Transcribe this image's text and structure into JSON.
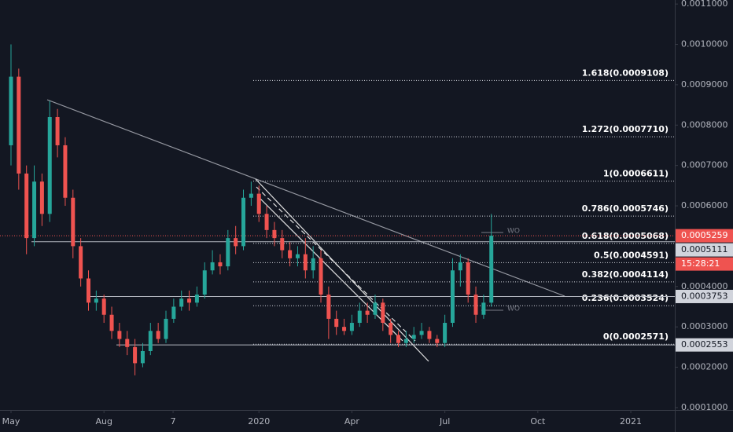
{
  "chart_data": {
    "type": "candlestick",
    "x": [
      0,
      0.25,
      0.5,
      0.75,
      1,
      1.25,
      1.5,
      1.75,
      2,
      2.25,
      2.5,
      2.75,
      3,
      3.25,
      3.5,
      3.75,
      4,
      4.25,
      4.5,
      4.75,
      5,
      5.25,
      5.5,
      5.75,
      6,
      6.25,
      6.5,
      6.75,
      7,
      7.25,
      7.5,
      7.75,
      8,
      8.25,
      8.5,
      8.75,
      9,
      9.25,
      9.5,
      9.75,
      10,
      10.25,
      10.5,
      10.75,
      11,
      11.25,
      11.5,
      11.75,
      12,
      12.25,
      12.5,
      12.75,
      13,
      13.25,
      13.5,
      13.75,
      14,
      14.25,
      14.5,
      14.75,
      15,
      15.25,
      15.5
    ],
    "open": [
      0.00075,
      0.00092,
      0.00068,
      0.00052,
      0.00066,
      0.00058,
      0.00082,
      0.00075,
      0.00062,
      0.0005,
      0.00042,
      0.00036,
      0.00037,
      0.00033,
      0.00029,
      0.00027,
      0.00025,
      0.00021,
      0.00024,
      0.00029,
      0.00027,
      0.00032,
      0.00035,
      0.00037,
      0.00036,
      0.00038,
      0.00044,
      0.00046,
      0.00045,
      0.00052,
      0.0005,
      0.00062,
      0.00063,
      0.00058,
      0.00054,
      0.00052,
      0.00049,
      0.00047,
      0.00048,
      0.00044,
      0.00047,
      0.00038,
      0.00032,
      0.0003,
      0.00029,
      0.00031,
      0.00034,
      0.00033,
      0.00036,
      0.00031,
      0.00028,
      0.00026,
      0.00027,
      0.00028,
      0.00029,
      0.00027,
      0.00026,
      0.00031,
      0.00044,
      0.00046,
      0.00038,
      0.00033,
      0.00036
    ],
    "high": [
      0.001,
      0.00094,
      0.0007,
      0.0007,
      0.00068,
      0.00086,
      0.00084,
      0.00077,
      0.00064,
      0.00052,
      0.00044,
      0.00039,
      0.00038,
      0.00035,
      0.00031,
      0.00029,
      0.00027,
      0.00026,
      0.00031,
      0.00031,
      0.00034,
      0.00037,
      0.00039,
      0.00039,
      0.0004,
      0.00046,
      0.00049,
      0.00048,
      0.00054,
      0.00055,
      0.00064,
      0.00066,
      0.00065,
      0.0006,
      0.00056,
      0.00054,
      0.00051,
      0.0005,
      0.00052,
      0.0005,
      0.00049,
      0.0004,
      0.00034,
      0.00032,
      0.00033,
      0.00036,
      0.00036,
      0.00038,
      0.00037,
      0.00032,
      0.00029,
      0.00029,
      0.0003,
      0.00031,
      0.0003,
      0.00028,
      0.00033,
      0.00047,
      0.00048,
      0.00047,
      0.0004,
      0.00038,
      0.00058
    ],
    "low": [
      0.0007,
      0.00064,
      0.00048,
      0.0005,
      0.00055,
      0.00056,
      0.00072,
      0.0006,
      0.00047,
      0.0004,
      0.00034,
      0.00034,
      0.00031,
      0.00027,
      0.00025,
      0.00023,
      0.00018,
      0.0002,
      0.00023,
      0.00026,
      0.00026,
      0.00031,
      0.00034,
      0.00034,
      0.00035,
      0.00037,
      0.00043,
      0.00043,
      0.00044,
      0.00048,
      0.00049,
      0.0006,
      0.00056,
      0.00052,
      0.0005,
      0.00047,
      0.00045,
      0.00045,
      0.00042,
      0.00042,
      0.00036,
      0.00027,
      0.00028,
      0.00028,
      0.00028,
      0.0003,
      0.00031,
      0.00032,
      0.00029,
      0.00026,
      0.00025,
      0.00025,
      0.00026,
      0.00027,
      0.00026,
      0.00025,
      0.00025,
      0.0003,
      0.0004,
      0.00036,
      0.00031,
      0.00032,
      0.00035
    ],
    "close": [
      0.00092,
      0.00068,
      0.00052,
      0.00066,
      0.00058,
      0.00082,
      0.00075,
      0.00062,
      0.0005,
      0.00042,
      0.00036,
      0.00037,
      0.00033,
      0.00029,
      0.00027,
      0.00025,
      0.00021,
      0.00024,
      0.00029,
      0.00027,
      0.00032,
      0.00035,
      0.00037,
      0.00036,
      0.00038,
      0.00044,
      0.00046,
      0.00045,
      0.00052,
      0.0005,
      0.00062,
      0.00063,
      0.00058,
      0.00054,
      0.00052,
      0.00049,
      0.00047,
      0.00048,
      0.00044,
      0.00047,
      0.00038,
      0.00032,
      0.0003,
      0.00029,
      0.00031,
      0.00034,
      0.00033,
      0.00036,
      0.00031,
      0.00028,
      0.00026,
      0.00027,
      0.00028,
      0.00029,
      0.00027,
      0.00026,
      0.00031,
      0.00044,
      0.00046,
      0.00038,
      0.00033,
      0.00036,
      0.0005259
    ],
    "up_color": "#26a69a",
    "down_color": "#ef5350",
    "xlim": [
      -0.355,
      21.42
    ],
    "xticks": [
      {
        "value": 0,
        "label": "May"
      },
      {
        "value": 3,
        "label": "Aug"
      },
      {
        "value": 5.23,
        "label": "7"
      },
      {
        "value": 8,
        "label": "2020"
      },
      {
        "value": 11,
        "label": "Apr"
      },
      {
        "value": 14,
        "label": "Jul"
      },
      {
        "value": 17,
        "label": "Oct"
      },
      {
        "value": 20,
        "label": "2021"
      }
    ],
    "ylim": [
      9.4e-05,
      0.00111
    ],
    "yticks": [
      {
        "value": 0.0011,
        "label": "0.0011000"
      },
      {
        "value": 0.001,
        "label": "0.0010000"
      },
      {
        "value": 0.0009,
        "label": "0.0009000"
      },
      {
        "value": 0.0008,
        "label": "0.0008000"
      },
      {
        "value": 0.0007,
        "label": "0.0007000"
      },
      {
        "value": 0.0006,
        "label": "0.0006000"
      },
      {
        "value": 0.0004,
        "label": "0.0004000"
      },
      {
        "value": 0.0003,
        "label": "0.0003000"
      },
      {
        "value": 0.0002,
        "label": "0.0002000"
      },
      {
        "value": 0.0001,
        "label": "0.0001000"
      }
    ],
    "fib_levels": [
      {
        "value": 0.0009108,
        "label": "1.618(0.0009108)"
      },
      {
        "value": 0.000771,
        "label": "1.272(0.0007710)"
      },
      {
        "value": 0.0006611,
        "label": "1(0.0006611)"
      },
      {
        "value": 0.0005746,
        "label": "0.786(0.0005746)"
      },
      {
        "value": 0.0005068,
        "label": "0.618(0.0005068)"
      },
      {
        "value": 0.0004591,
        "label": "0.5(0.0004591)"
      },
      {
        "value": 0.0004114,
        "label": "0.382(0.0004114)"
      },
      {
        "value": 0.0003524,
        "label": "0.236(0.0003524)"
      },
      {
        "value": 0.0002571,
        "label": "0(0.0002571)"
      }
    ],
    "horizontal_lines": [
      0.0005111,
      0.0003753,
      0.0002553
    ],
    "last_price": 0.0005259,
    "countdown": "15:28:21",
    "annotations": [
      "WO",
      "WO"
    ]
  }
}
